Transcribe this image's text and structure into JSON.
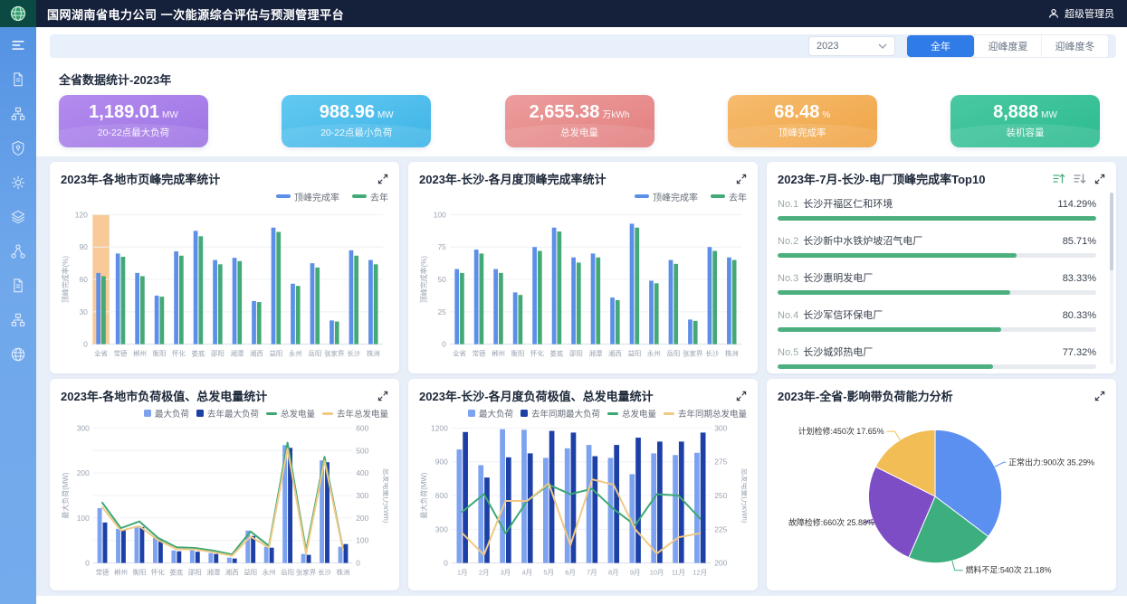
{
  "header": {
    "title": "国网湖南省电力公司 一次能源综合评估与预测管理平台",
    "user": "超级管理员"
  },
  "sidebar": {
    "items": [
      {
        "icon": "menu-icon"
      },
      {
        "icon": "document-icon"
      },
      {
        "icon": "sitemap-icon"
      },
      {
        "icon": "shield-icon"
      },
      {
        "icon": "gear-icon"
      },
      {
        "icon": "layers-icon"
      },
      {
        "icon": "share-nodes-icon"
      },
      {
        "icon": "document-icon"
      },
      {
        "icon": "sitemap-icon"
      },
      {
        "icon": "globe-icon"
      }
    ]
  },
  "filters": {
    "year": "2023",
    "tabs": [
      "全年",
      "迎峰度夏",
      "迎峰度冬"
    ],
    "active_tab": 0,
    "active_color": "#2F7BE8"
  },
  "stats": {
    "section_title": "全省数据统计-2023年",
    "cards": [
      {
        "value": "1,189.01",
        "unit": "MW",
        "label": "20-22点最大负荷",
        "from": "#B48BEE",
        "to": "#9E74E4"
      },
      {
        "value": "988.96",
        "unit": "MW",
        "label": "20-22点最小负荷",
        "from": "#63C9F1",
        "to": "#3EB4E7"
      },
      {
        "value": "2,655.38",
        "unit": "万kWh",
        "label": "总发电量",
        "from": "#EC9D9D",
        "to": "#E37F7F"
      },
      {
        "value": "68.48",
        "unit": "%",
        "label": "顶峰完成率",
        "from": "#F6BC6E",
        "to": "#F0A446"
      },
      {
        "value": "8,888",
        "unit": "MW",
        "label": "装机容量",
        "from": "#4AC8A2",
        "to": "#2CBB90"
      }
    ]
  },
  "chart_data": [
    {
      "id": "chart-0",
      "type": "bar",
      "title": "2023年-各地市页峰完成率统计",
      "ylabel": "顶峰完成率(%)",
      "ylim": [
        0,
        120
      ],
      "yticks": [
        0,
        30,
        60,
        90,
        120
      ],
      "categories": [
        "全省",
        "常德",
        "郴州",
        "衡阳",
        "怀化",
        "娄底",
        "邵阳",
        "湘潭",
        "湘西",
        "益阳",
        "永州",
        "岳阳",
        "张家界",
        "长沙",
        "株洲"
      ],
      "highlight": {
        "category": "全省",
        "color": "#F6C185"
      },
      "series": [
        {
          "name": "顶峰完成率",
          "color": "#5B8FE8",
          "values": [
            66,
            84,
            66,
            45,
            86,
            105,
            78,
            80,
            40,
            108,
            56,
            75,
            22,
            87,
            78
          ]
        },
        {
          "name": "去年",
          "color": "#43A976",
          "values": [
            63,
            81,
            63,
            44,
            82,
            100,
            74,
            77,
            39,
            104,
            54,
            71,
            21,
            82,
            74
          ]
        }
      ]
    },
    {
      "id": "chart-1",
      "type": "bar",
      "title": "2023年-长沙-各月度顶峰完成率统计",
      "ylabel": "顶峰完成率(%)",
      "ylim": [
        0,
        100
      ],
      "yticks": [
        0,
        25,
        50,
        75,
        100
      ],
      "categories": [
        "全省",
        "常德",
        "郴州",
        "衡阳",
        "怀化",
        "娄底",
        "邵阳",
        "湘潭",
        "湘西",
        "益阳",
        "永州",
        "岳阳",
        "张家界",
        "长沙",
        "株洲"
      ],
      "series": [
        {
          "name": "顶峰完成率",
          "color": "#5B8FE8",
          "values": [
            58,
            73,
            58,
            40,
            75,
            90,
            67,
            70,
            36,
            93,
            49,
            65,
            19,
            75,
            67
          ]
        },
        {
          "name": "去年",
          "color": "#43A976",
          "values": [
            55,
            70,
            55,
            38,
            72,
            87,
            63,
            67,
            34,
            90,
            47,
            62,
            18,
            72,
            65
          ]
        }
      ]
    },
    {
      "id": "top10",
      "type": "table",
      "title": "2023年-7月-长沙-电厂顶峰完成率Top10",
      "bar_color": "#4CAF7E",
      "items": [
        {
          "rank": "No.1",
          "name": "长沙开福区仁和环境",
          "value": "114.29%",
          "pct": 114.29
        },
        {
          "rank": "No.2",
          "name": "长沙新中水铁炉坡沼气电厂",
          "value": "85.71%",
          "pct": 85.71
        },
        {
          "rank": "No.3",
          "name": "长沙惠明发电厂",
          "value": "83.33%",
          "pct": 83.33
        },
        {
          "rank": "No.4",
          "name": "长沙军信环保电厂",
          "value": "80.33%",
          "pct": 80.33
        },
        {
          "rank": "No.5",
          "name": "长沙城郊热电厂",
          "value": "77.32%",
          "pct": 77.32
        }
      ]
    },
    {
      "id": "chart-3",
      "type": "bar-line",
      "title": "2023年-各地市负荷极值、总发电量统计",
      "ylabel_left": "最大负荷(MW)",
      "ylabel_right": "总发电量(万kWh)",
      "ylim_left": [
        0,
        300
      ],
      "yticks_left": [
        0,
        100,
        200,
        300
      ],
      "ylim_right": [
        0,
        600
      ],
      "yticks_right": [
        0,
        100,
        200,
        300,
        400,
        500,
        600
      ],
      "categories": [
        "常德",
        "郴州",
        "衡阳",
        "怀化",
        "娄底",
        "邵阳",
        "湘潭",
        "湘西",
        "益阳",
        "永州",
        "岳阳",
        "张家界",
        "长沙",
        "株洲"
      ],
      "series": [
        {
          "name": "最大负荷",
          "kind": "bar",
          "color": "#7CA2F0",
          "values": [
            122,
            76,
            82,
            56,
            28,
            28,
            22,
            12,
            72,
            36,
            262,
            20,
            228,
            36
          ]
        },
        {
          "name": "去年最大负荷",
          "kind": "bar",
          "color": "#1D40A6",
          "values": [
            90,
            73,
            80,
            52,
            26,
            25,
            20,
            10,
            60,
            34,
            256,
            18,
            224,
            42
          ]
        },
        {
          "name": "总发电量",
          "kind": "line",
          "color": "#3CA873",
          "values": [
            268,
            155,
            185,
            112,
            70,
            67,
            55,
            38,
            140,
            76,
            535,
            55,
            472,
            60
          ]
        },
        {
          "name": "去年总发电量",
          "kind": "line",
          "color": "#F0C985",
          "values": [
            248,
            144,
            164,
            102,
            62,
            60,
            48,
            32,
            118,
            68,
            508,
            40,
            455,
            56
          ]
        }
      ]
    },
    {
      "id": "chart-4",
      "type": "bar-line",
      "title": "2023年-长沙-各月度负荷极值、总发电量统计",
      "ylabel_left": "最大负荷(MW)",
      "ylabel_right": "总发电量(万kWh)",
      "ylim_left": [
        0,
        1200
      ],
      "yticks_left": [
        0,
        300,
        600,
        900,
        1200
      ],
      "ylim_right": [
        200,
        300
      ],
      "yticks_right": [
        200,
        225,
        250,
        275,
        300
      ],
      "categories": [
        "1月",
        "2月",
        "3月",
        "4月",
        "5月",
        "6月",
        "7月",
        "8月",
        "9月",
        "10月",
        "11月",
        "12月"
      ],
      "series": [
        {
          "name": "最大负荷",
          "kind": "bar",
          "color": "#7CA2F0",
          "values": [
            1010,
            870,
            1190,
            1185,
            935,
            1020,
            1050,
            935,
            790,
            975,
            960,
            980
          ]
        },
        {
          "name": "去年同期最大负荷",
          "kind": "bar",
          "color": "#1D40A6",
          "values": [
            1165,
            760,
            940,
            975,
            1175,
            1160,
            950,
            1050,
            1115,
            1080,
            1080,
            1160
          ]
        },
        {
          "name": "总发电量",
          "kind": "line",
          "color": "#3CA873",
          "values": [
            238,
            251,
            222,
            246,
            258,
            251,
            255,
            240,
            228,
            251,
            250,
            233
          ]
        },
        {
          "name": "去年同期总发电量",
          "kind": "line",
          "color": "#F0C985",
          "values": [
            222,
            206,
            246,
            246,
            259,
            213,
            262,
            258,
            225,
            207,
            219,
            222
          ]
        }
      ]
    },
    {
      "id": "chart-5",
      "type": "pie",
      "title": "2023年-全省-影响带负荷能力分析",
      "slices": [
        {
          "label": "正常出力",
          "count": "900次",
          "pct": 35.29,
          "color": "#5B8FF0"
        },
        {
          "label": "燃料不足",
          "count": "540次",
          "pct": 21.18,
          "color": "#3DAE7E"
        },
        {
          "label": "故障检修",
          "count": "660次",
          "pct": 25.88,
          "color": "#7C4DC4"
        },
        {
          "label": "计划检修",
          "count": "450次",
          "pct": 17.65,
          "color": "#F2BD55"
        }
      ]
    }
  ]
}
